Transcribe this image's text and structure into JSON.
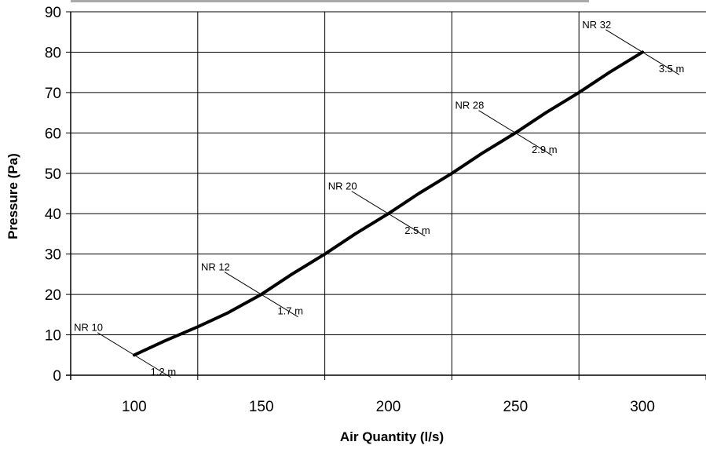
{
  "chart_data": {
    "type": "line",
    "xlabel": "Air Quantity (l/s)",
    "ylabel": "Pressure (Pa)",
    "xlim": [
      75,
      325
    ],
    "ylim": [
      0,
      90
    ],
    "x_ticks": [
      100,
      150,
      200,
      250,
      300
    ],
    "y_ticks": [
      0,
      10,
      20,
      30,
      40,
      50,
      60,
      70,
      80,
      90
    ],
    "x_tick_labels": [
      "100",
      "150",
      "200",
      "250",
      "300"
    ],
    "y_tick_labels": [
      "0",
      "10",
      "20",
      "30",
      "40",
      "50",
      "60",
      "70",
      "80",
      "90"
    ],
    "grid": true,
    "legend": "none",
    "line_color": "#000000",
    "series": [
      {
        "x": [
          100,
          112,
          125,
          137,
          150,
          162,
          175,
          187,
          200,
          212,
          225,
          237,
          250,
          262,
          275,
          287,
          300
        ],
        "y": [
          5,
          8.5,
          12,
          15.5,
          20,
          25,
          30,
          35,
          40,
          45,
          50,
          55,
          60,
          65,
          70,
          75,
          80
        ]
      }
    ],
    "annotations": [
      {
        "nr": "NR 10",
        "dist": "1.2 m",
        "x": 100,
        "y": 5
      },
      {
        "nr": "NR 12",
        "dist": "1.7 m",
        "x": 150,
        "y": 20
      },
      {
        "nr": "NR 20",
        "dist": "2.5 m",
        "x": 200,
        "y": 40
      },
      {
        "nr": "NR 28",
        "dist": "2.9 m",
        "x": 250,
        "y": 60
      },
      {
        "nr": "NR 32",
        "dist": "3.5 m",
        "x": 300,
        "y": 80
      }
    ]
  }
}
